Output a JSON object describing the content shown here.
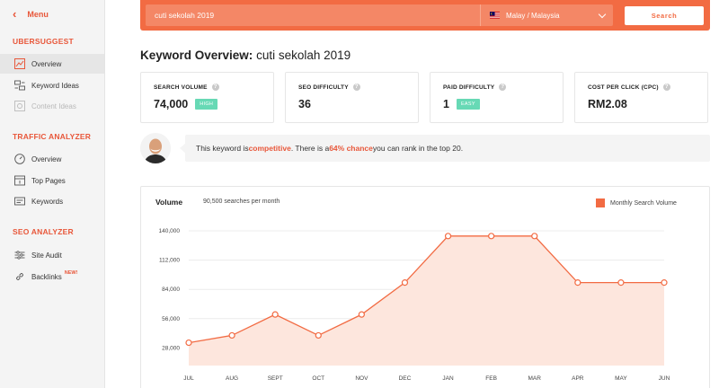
{
  "sidebar": {
    "menu_label": "Menu",
    "sections": [
      {
        "title": "UBERSUGGEST",
        "items": [
          {
            "label": "Overview",
            "icon": "overview-icon",
            "active": true
          },
          {
            "label": "Keyword Ideas",
            "icon": "keyword-ideas-icon"
          },
          {
            "label": "Content Ideas",
            "icon": "content-ideas-icon",
            "disabled": true
          }
        ]
      },
      {
        "title": "TRAFFIC ANALYZER",
        "items": [
          {
            "label": "Overview",
            "icon": "gauge-icon"
          },
          {
            "label": "Top Pages",
            "icon": "top-pages-icon"
          },
          {
            "label": "Keywords",
            "icon": "keywords-icon"
          }
        ]
      },
      {
        "title": "SEO ANALYZER",
        "items": [
          {
            "label": "Site Audit",
            "icon": "site-audit-icon"
          },
          {
            "label": "Backlinks",
            "icon": "backlinks-icon",
            "badge": "NEW!"
          }
        ]
      }
    ]
  },
  "search": {
    "query": "cuti sekolah 2019",
    "country": "Malay / Malaysia",
    "button_label": "Search"
  },
  "overview": {
    "title_prefix": "Keyword Overview:",
    "keyword": "cuti sekolah 2019"
  },
  "cards": [
    {
      "label": "SEARCH VOLUME",
      "value": "74,000",
      "badge": "HIGH"
    },
    {
      "label": "SEO DIFFICULTY",
      "value": "36"
    },
    {
      "label": "PAID DIFFICULTY",
      "value": "1",
      "badge": "EASY"
    },
    {
      "label": "COST PER CLICK (CPC)",
      "value": "RM2.08"
    }
  ],
  "insight": {
    "part1": "This keyword is ",
    "competitive": "competitive",
    "part2": ". There is a ",
    "chance": "64% chance",
    "part3": " you can rank in the top 20."
  },
  "colors": {
    "accent": "#f26b43",
    "badge_green": "#67d9b5"
  },
  "chart_data": {
    "type": "area",
    "title": "Volume",
    "subtitle": "90,500 searches per month",
    "legend": "Monthly Search Volume",
    "legend_position": "top-right",
    "categories": [
      "JUL",
      "AUG",
      "SEPT",
      "OCT",
      "NOV",
      "DEC",
      "JAN",
      "FEB",
      "MAR",
      "APR",
      "MAY",
      "JUN"
    ],
    "series": [
      {
        "name": "Monthly Search Volume",
        "values": [
          33000,
          40000,
          60000,
          40000,
          60000,
          90500,
          135000,
          135000,
          135000,
          90500,
          90500,
          90500
        ]
      }
    ],
    "y_ticks": [
      "28,000",
      "56,000",
      "84,000",
      "112,000",
      "140,000"
    ],
    "ylim": [
      0,
      140000
    ],
    "grid": true
  }
}
